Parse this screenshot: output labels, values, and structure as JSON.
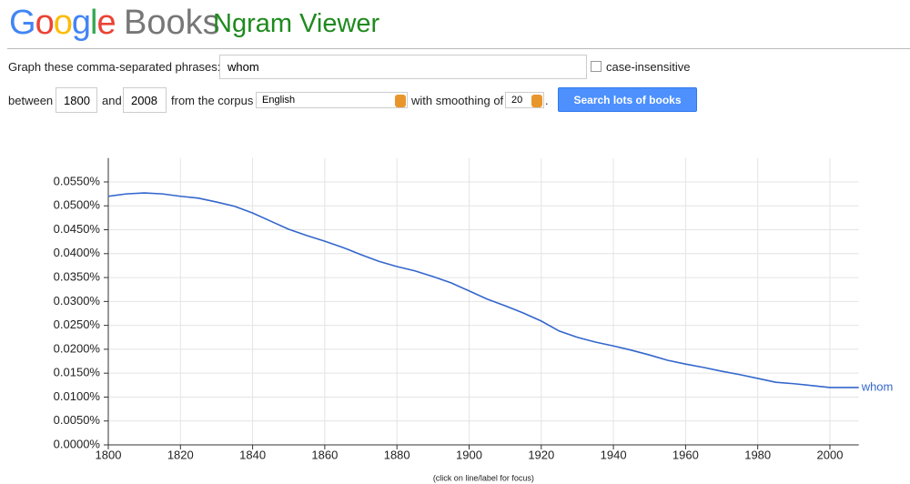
{
  "header": {
    "logo": "Google",
    "product": "Books",
    "title": "Ngram Viewer"
  },
  "form": {
    "phrases_label": "Graph these comma-separated phrases:",
    "phrases_value": "whom",
    "case_label": "case-insensitive",
    "between_label": "between",
    "start_year": "1800",
    "and_label": "and",
    "end_year": "2008",
    "corpus_label": "from the corpus",
    "corpus": "English",
    "smoothing_label": "with smoothing of",
    "smoothing": "20",
    "period": ".",
    "button": "Search lots of books"
  },
  "chart_data": {
    "type": "line",
    "x": [
      1800,
      1805,
      1810,
      1815,
      1820,
      1825,
      1830,
      1835,
      1840,
      1845,
      1850,
      1855,
      1860,
      1865,
      1870,
      1875,
      1880,
      1885,
      1890,
      1895,
      1900,
      1905,
      1910,
      1915,
      1920,
      1925,
      1930,
      1935,
      1940,
      1945,
      1950,
      1955,
      1960,
      1965,
      1970,
      1975,
      1980,
      1985,
      1990,
      1995,
      2000,
      2005,
      2008
    ],
    "series": [
      {
        "name": "whom",
        "color": "#3366cc",
        "values": [
          0.052,
          0.0525,
          0.0527,
          0.0525,
          0.052,
          0.0516,
          0.0508,
          0.0499,
          0.0485,
          0.0468,
          0.0451,
          0.0438,
          0.0426,
          0.0413,
          0.0398,
          0.0384,
          0.0373,
          0.0364,
          0.0352,
          0.0339,
          0.0322,
          0.0305,
          0.0291,
          0.0276,
          0.0259,
          0.0238,
          0.0225,
          0.0215,
          0.0207,
          0.0198,
          0.0188,
          0.0177,
          0.0169,
          0.0162,
          0.0154,
          0.0147,
          0.0139,
          0.0131,
          0.0128,
          0.0124,
          0.012,
          0.012,
          0.012
        ]
      }
    ],
    "xlim": [
      1800,
      2008
    ],
    "xticks": [
      1800,
      1820,
      1840,
      1860,
      1880,
      1900,
      1920,
      1940,
      1960,
      1980,
      2000
    ],
    "ylim": [
      0,
      0.06
    ],
    "yticks": [
      {
        "value": 0,
        "label": "0.0000%"
      },
      {
        "value": 0.005,
        "label": "0.0050%"
      },
      {
        "value": 0.01,
        "label": "0.0100%"
      },
      {
        "value": 0.015,
        "label": "0.0150%"
      },
      {
        "value": 0.02,
        "label": "0.0200%"
      },
      {
        "value": 0.025,
        "label": "0.0250%"
      },
      {
        "value": 0.03,
        "label": "0.0300%"
      },
      {
        "value": 0.035,
        "label": "0.0350%"
      },
      {
        "value": 0.04,
        "label": "0.0400%"
      },
      {
        "value": 0.045,
        "label": "0.0450%"
      },
      {
        "value": 0.05,
        "label": "0.0500%"
      },
      {
        "value": 0.055,
        "label": "0.0550%"
      }
    ],
    "grid": true,
    "note": "(click on line/label for focus)"
  }
}
